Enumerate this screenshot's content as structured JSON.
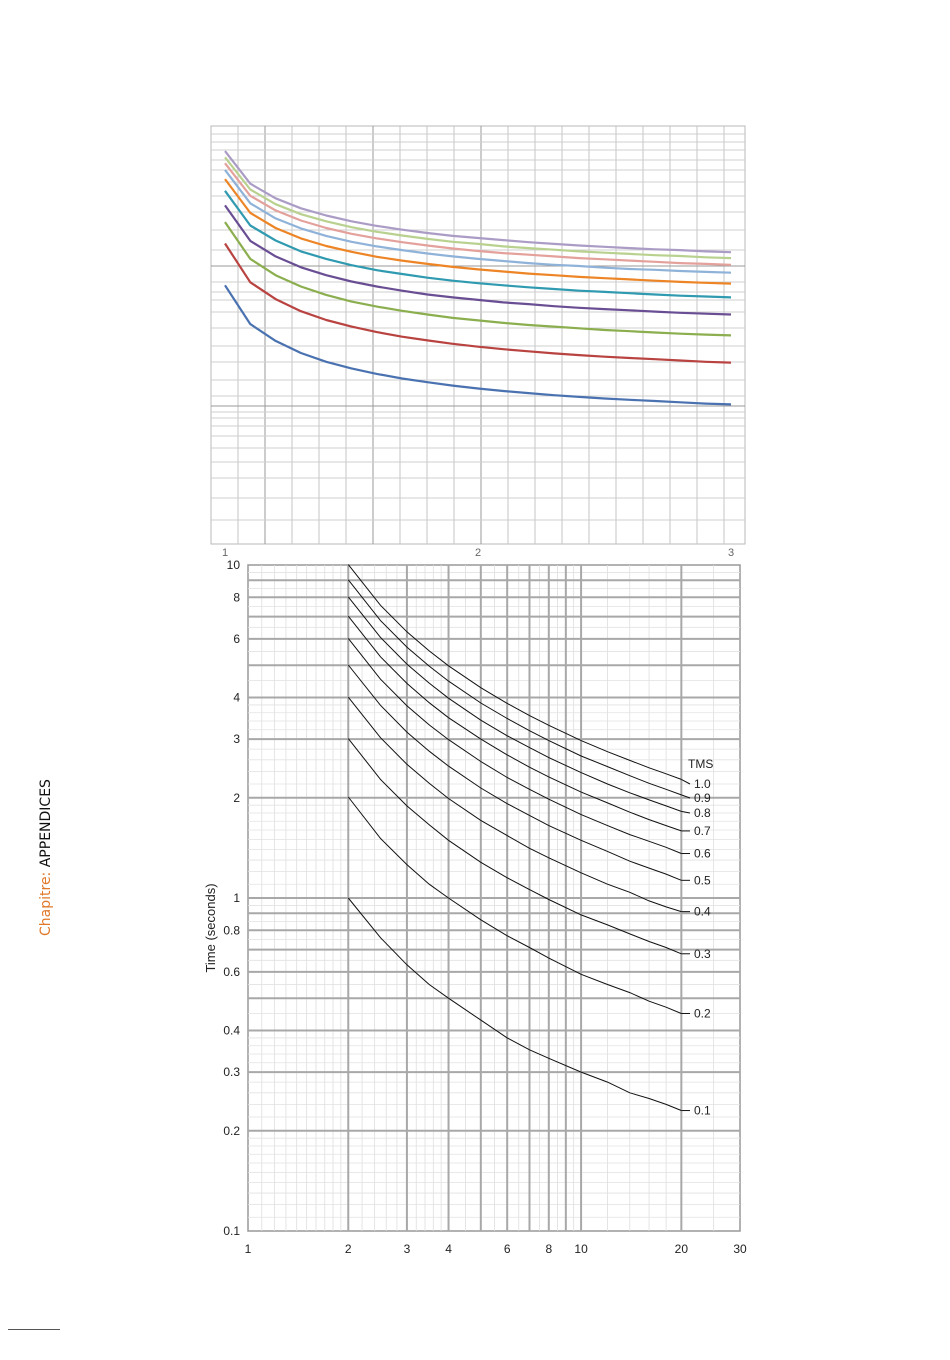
{
  "sidebar": {
    "prefix": "Chapitre: ",
    "name": "APPENDICES"
  },
  "chart_data": [
    {
      "type": "line",
      "title": "",
      "xlabel": "",
      "ylabel": "",
      "x_ticks": [
        "1",
        "2",
        "3"
      ],
      "xlim": [
        1,
        3
      ],
      "ylim": [
        0,
        1
      ],
      "grid": true,
      "legend": "none",
      "x": [
        1.0,
        1.1,
        1.2,
        1.3,
        1.4,
        1.5,
        1.6,
        1.7,
        1.8,
        1.9,
        2.0,
        2.1,
        2.2,
        2.3,
        2.4,
        2.5,
        2.6,
        2.7,
        2.8,
        2.9,
        3.0
      ],
      "series": [
        {
          "color": "#4a72b0",
          "values": [
            0.619,
            0.526,
            0.486,
            0.457,
            0.436,
            0.42,
            0.407,
            0.396,
            0.387,
            0.379,
            0.372,
            0.366,
            0.361,
            0.356,
            0.352,
            0.348,
            0.345,
            0.342,
            0.339,
            0.336,
            0.334
          ]
        },
        {
          "color": "#b84340",
          "values": [
            0.719,
            0.626,
            0.586,
            0.557,
            0.536,
            0.52,
            0.507,
            0.496,
            0.487,
            0.479,
            0.472,
            0.466,
            0.461,
            0.456,
            0.452,
            0.448,
            0.445,
            0.442,
            0.439,
            0.436,
            0.434
          ]
        },
        {
          "color": "#8bae4e",
          "values": [
            0.77,
            0.682,
            0.643,
            0.616,
            0.596,
            0.58,
            0.568,
            0.558,
            0.549,
            0.541,
            0.535,
            0.529,
            0.524,
            0.52,
            0.516,
            0.512,
            0.509,
            0.506,
            0.503,
            0.501,
            0.499
          ]
        },
        {
          "color": "#6a4e93",
          "values": [
            0.81,
            0.725,
            0.688,
            0.662,
            0.643,
            0.628,
            0.616,
            0.606,
            0.597,
            0.59,
            0.584,
            0.578,
            0.574,
            0.569,
            0.565,
            0.562,
            0.559,
            0.556,
            0.553,
            0.551,
            0.549
          ]
        },
        {
          "color": "#2f9ab0",
          "values": [
            0.845,
            0.762,
            0.726,
            0.7,
            0.682,
            0.667,
            0.655,
            0.646,
            0.637,
            0.63,
            0.624,
            0.619,
            0.614,
            0.61,
            0.606,
            0.603,
            0.6,
            0.597,
            0.594,
            0.592,
            0.59
          ]
        },
        {
          "color": "#ed8526",
          "values": [
            0.873,
            0.792,
            0.756,
            0.731,
            0.713,
            0.699,
            0.687,
            0.678,
            0.67,
            0.663,
            0.657,
            0.652,
            0.647,
            0.643,
            0.639,
            0.636,
            0.633,
            0.63,
            0.627,
            0.625,
            0.623
          ]
        },
        {
          "color": "#8fb2d9",
          "values": [
            0.895,
            0.815,
            0.779,
            0.755,
            0.737,
            0.723,
            0.712,
            0.703,
            0.695,
            0.688,
            0.682,
            0.677,
            0.672,
            0.668,
            0.665,
            0.661,
            0.658,
            0.656,
            0.653,
            0.651,
            0.649
          ]
        },
        {
          "color": "#e4a19c",
          "values": [
            0.911,
            0.833,
            0.798,
            0.774,
            0.756,
            0.742,
            0.731,
            0.722,
            0.714,
            0.707,
            0.701,
            0.696,
            0.692,
            0.688,
            0.684,
            0.681,
            0.678,
            0.675,
            0.672,
            0.67,
            0.668
          ]
        },
        {
          "color": "#b9d18f",
          "values": [
            0.925,
            0.848,
            0.813,
            0.789,
            0.772,
            0.758,
            0.747,
            0.738,
            0.73,
            0.723,
            0.718,
            0.712,
            0.708,
            0.704,
            0.7,
            0.697,
            0.694,
            0.691,
            0.689,
            0.686,
            0.684
          ]
        },
        {
          "color": "#ab9cc6",
          "values": [
            0.94,
            0.862,
            0.827,
            0.803,
            0.786,
            0.772,
            0.761,
            0.752,
            0.744,
            0.737,
            0.732,
            0.727,
            0.722,
            0.718,
            0.714,
            0.711,
            0.708,
            0.705,
            0.703,
            0.7,
            0.698
          ]
        }
      ]
    },
    {
      "type": "line",
      "title": "",
      "xlabel": "",
      "ylabel": "Time (seconds)",
      "log_x": true,
      "log_y": true,
      "xlim": [
        1,
        30
      ],
      "ylim": [
        0.1,
        10
      ],
      "x_ticks": [
        1,
        2,
        3,
        4,
        6,
        8,
        10,
        20,
        30
      ],
      "y_ticks": [
        0.1,
        0.2,
        0.3,
        0.4,
        0.6,
        0.8,
        1,
        2,
        3,
        4,
        6,
        8,
        10
      ],
      "grid": true,
      "legend_title": "TMS",
      "line_color": "#111111",
      "x": [
        2,
        2.5,
        3,
        3.5,
        4,
        5,
        6,
        7,
        8,
        10,
        12,
        14,
        16,
        18,
        20
      ],
      "series": [
        {
          "name": "1.0",
          "values": [
            10.03,
            7.57,
            6.3,
            5.52,
            4.98,
            4.28,
            3.84,
            3.53,
            3.3,
            2.97,
            2.75,
            2.59,
            2.46,
            2.36,
            2.27
          ]
        },
        {
          "name": "0.9",
          "values": [
            9.03,
            6.81,
            5.67,
            4.97,
            4.48,
            3.85,
            3.46,
            3.18,
            2.97,
            2.67,
            2.48,
            2.33,
            2.21,
            2.12,
            2.04
          ]
        },
        {
          "name": "0.8",
          "values": [
            8.02,
            6.06,
            5.04,
            4.42,
            3.98,
            3.42,
            3.07,
            2.83,
            2.64,
            2.38,
            2.2,
            2.07,
            1.97,
            1.89,
            1.82
          ]
        },
        {
          "name": "0.7",
          "values": [
            7.02,
            5.3,
            4.41,
            3.86,
            3.48,
            3.0,
            2.69,
            2.47,
            2.31,
            2.08,
            1.93,
            1.81,
            1.72,
            1.65,
            1.59
          ]
        },
        {
          "name": "0.6",
          "values": [
            6.02,
            4.54,
            3.78,
            3.31,
            2.99,
            2.57,
            2.3,
            2.12,
            1.98,
            1.78,
            1.65,
            1.55,
            1.48,
            1.42,
            1.36
          ]
        },
        {
          "name": "0.5",
          "values": [
            5.01,
            3.79,
            3.15,
            2.76,
            2.49,
            2.14,
            1.92,
            1.77,
            1.65,
            1.49,
            1.38,
            1.29,
            1.23,
            1.18,
            1.13
          ]
        },
        {
          "name": "0.4",
          "values": [
            4.01,
            3.03,
            2.52,
            2.21,
            1.99,
            1.71,
            1.54,
            1.41,
            1.32,
            1.19,
            1.1,
            1.04,
            0.98,
            0.94,
            0.91
          ]
        },
        {
          "name": "0.3",
          "values": [
            3.01,
            2.27,
            1.89,
            1.66,
            1.49,
            1.28,
            1.15,
            1.06,
            0.99,
            0.89,
            0.83,
            0.78,
            0.74,
            0.71,
            0.68
          ]
        },
        {
          "name": "0.2",
          "values": [
            2.01,
            1.51,
            1.26,
            1.1,
            1.0,
            0.86,
            0.77,
            0.71,
            0.66,
            0.59,
            0.55,
            0.52,
            0.49,
            0.47,
            0.45
          ]
        },
        {
          "name": "0.1",
          "values": [
            1.0,
            0.76,
            0.63,
            0.55,
            0.5,
            0.43,
            0.38,
            0.35,
            0.33,
            0.3,
            0.28,
            0.26,
            0.25,
            0.24,
            0.23
          ]
        }
      ]
    }
  ]
}
